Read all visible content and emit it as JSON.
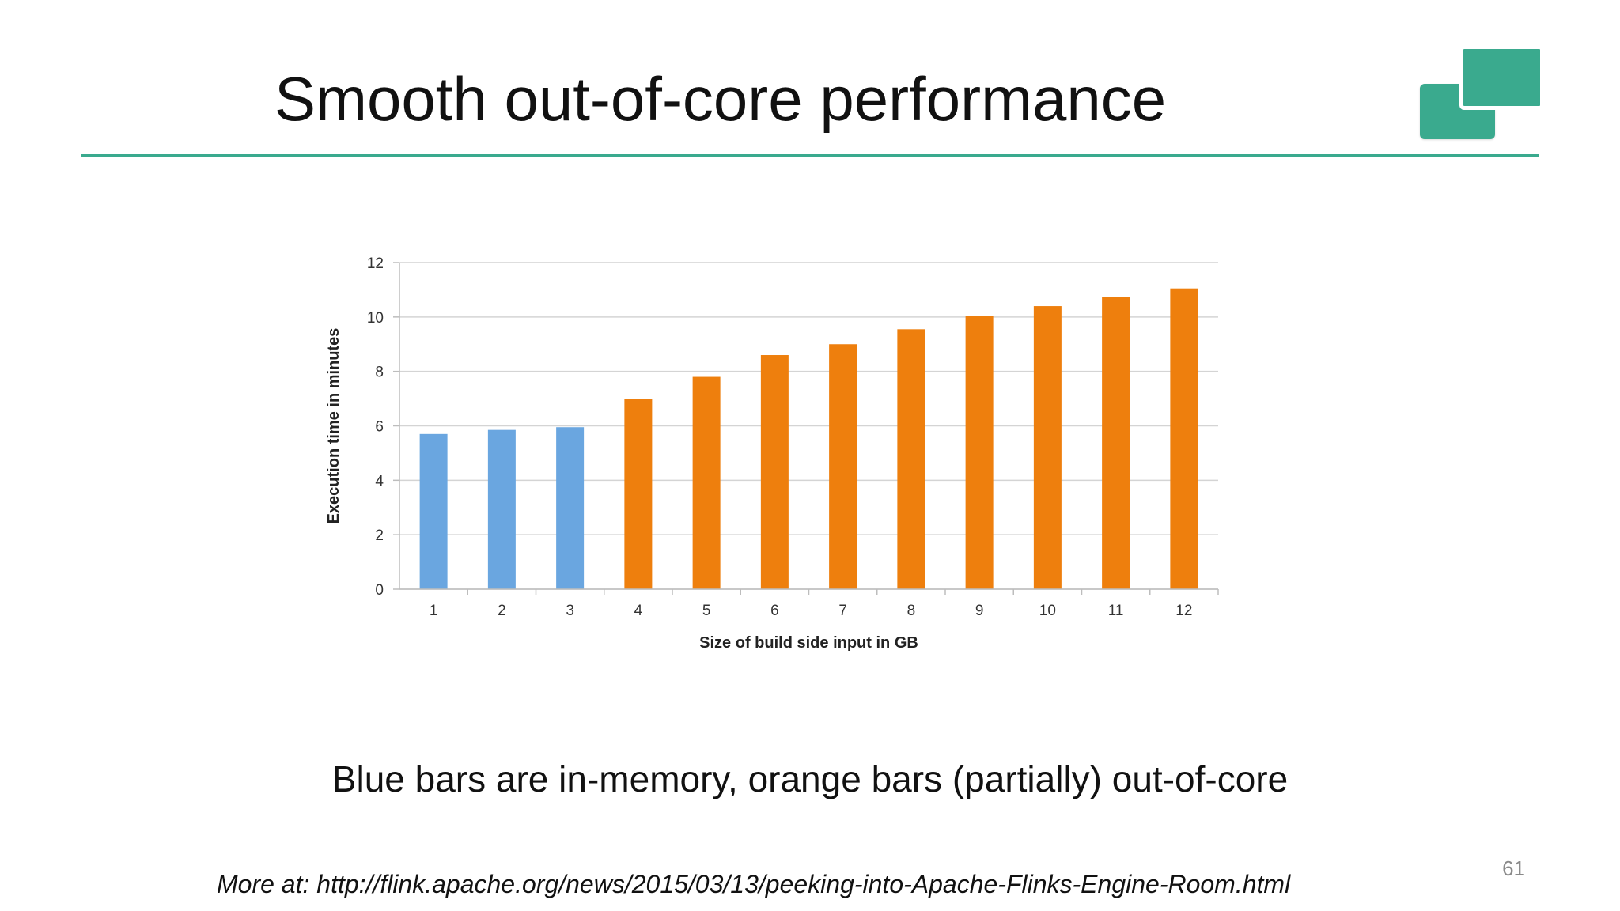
{
  "slide": {
    "title": "Smooth out-of-core performance",
    "caption": "Blue bars are in-memory, orange bars (partially) out-of-core",
    "page_number": "61",
    "footer_link": "More at: http://flink.apache.org/news/2015/03/13/peeking-into-Apache-Flinks-Engine-Room.html",
    "logo_icon": "green-squares-logo-icon",
    "accent_color": "#3aaa8e"
  },
  "chart_data": {
    "type": "bar",
    "categories": [
      "1",
      "2",
      "3",
      "4",
      "5",
      "6",
      "7",
      "8",
      "9",
      "10",
      "11",
      "12"
    ],
    "values": [
      5.7,
      5.85,
      5.95,
      7.0,
      7.8,
      8.6,
      9.0,
      9.55,
      10.05,
      10.4,
      10.75,
      11.05
    ],
    "bar_colors": [
      "#6aa6e0",
      "#6aa6e0",
      "#6aa6e0",
      "#ee7f0d",
      "#ee7f0d",
      "#ee7f0d",
      "#ee7f0d",
      "#ee7f0d",
      "#ee7f0d",
      "#ee7f0d",
      "#ee7f0d",
      "#ee7f0d"
    ],
    "xlabel": "Size of build side input in GB",
    "ylabel": "Execution time in minutes",
    "ylim": [
      0,
      12
    ],
    "yticks": [
      "0",
      "2",
      "4",
      "6",
      "8",
      "10",
      "12"
    ],
    "grid": true,
    "legend": "none"
  }
}
